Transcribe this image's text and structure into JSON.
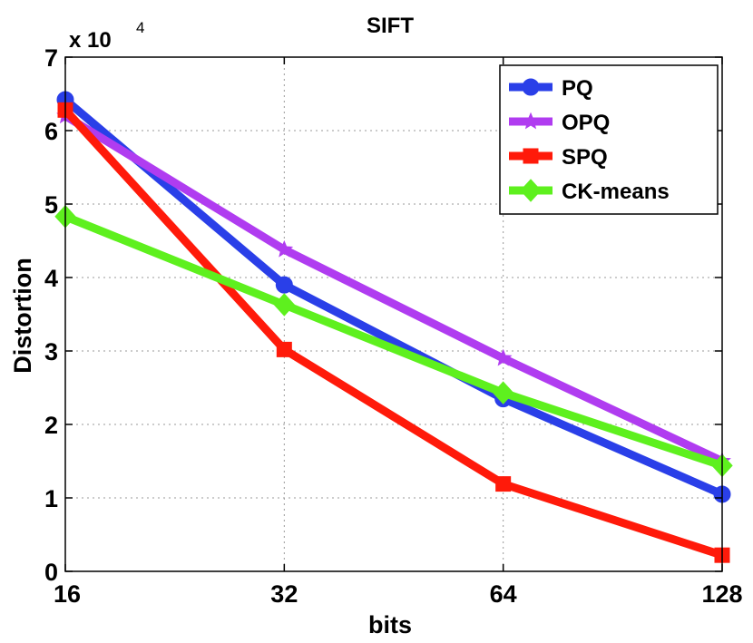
{
  "chart_data": {
    "type": "line",
    "title": "SIFT",
    "xlabel": "bits",
    "ylabel": "Distortion",
    "x_scale": "log2",
    "x": [
      16,
      32,
      64,
      128
    ],
    "x_tick_labels": [
      "16",
      "32",
      "64",
      "128"
    ],
    "ylim": [
      0,
      7
    ],
    "y_ticks": [
      0,
      1,
      2,
      3,
      4,
      5,
      6,
      7
    ],
    "y_tick_labels": [
      "0",
      "1",
      "2",
      "3",
      "4",
      "5",
      "6",
      "7"
    ],
    "y_multiplier_prefix": "x 10",
    "y_multiplier_exponent": "4",
    "grid": true,
    "legend_position": "top-right",
    "series": [
      {
        "name": "PQ",
        "values": [
          6.42,
          3.9,
          2.35,
          1.05
        ],
        "color": "#2a3fe8",
        "marker": "circle"
      },
      {
        "name": "OPQ",
        "values": [
          6.2,
          4.38,
          2.9,
          1.5
        ],
        "color": "#b03cf0",
        "marker": "star"
      },
      {
        "name": "SPQ",
        "values": [
          6.28,
          3.02,
          1.19,
          0.22
        ],
        "color": "#ff1a0a",
        "marker": "square"
      },
      {
        "name": "CK-means",
        "values": [
          4.83,
          3.63,
          2.43,
          1.44
        ],
        "color": "#5ef01e",
        "marker": "diamond"
      }
    ]
  }
}
